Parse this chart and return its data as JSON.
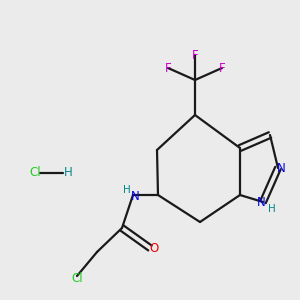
{
  "bg_color": "#ebebeb",
  "bond_color": "#1a1a1a",
  "N_color": "#0000ee",
  "O_color": "#ee0000",
  "Cl_color": "#22cc22",
  "F_color": "#cc00cc",
  "H_color": "#777777",
  "NH_color": "#008888",
  "lw": 1.6,
  "fs": 8.5,
  "xlim": [
    0,
    10
  ],
  "ylim": [
    0,
    10
  ]
}
